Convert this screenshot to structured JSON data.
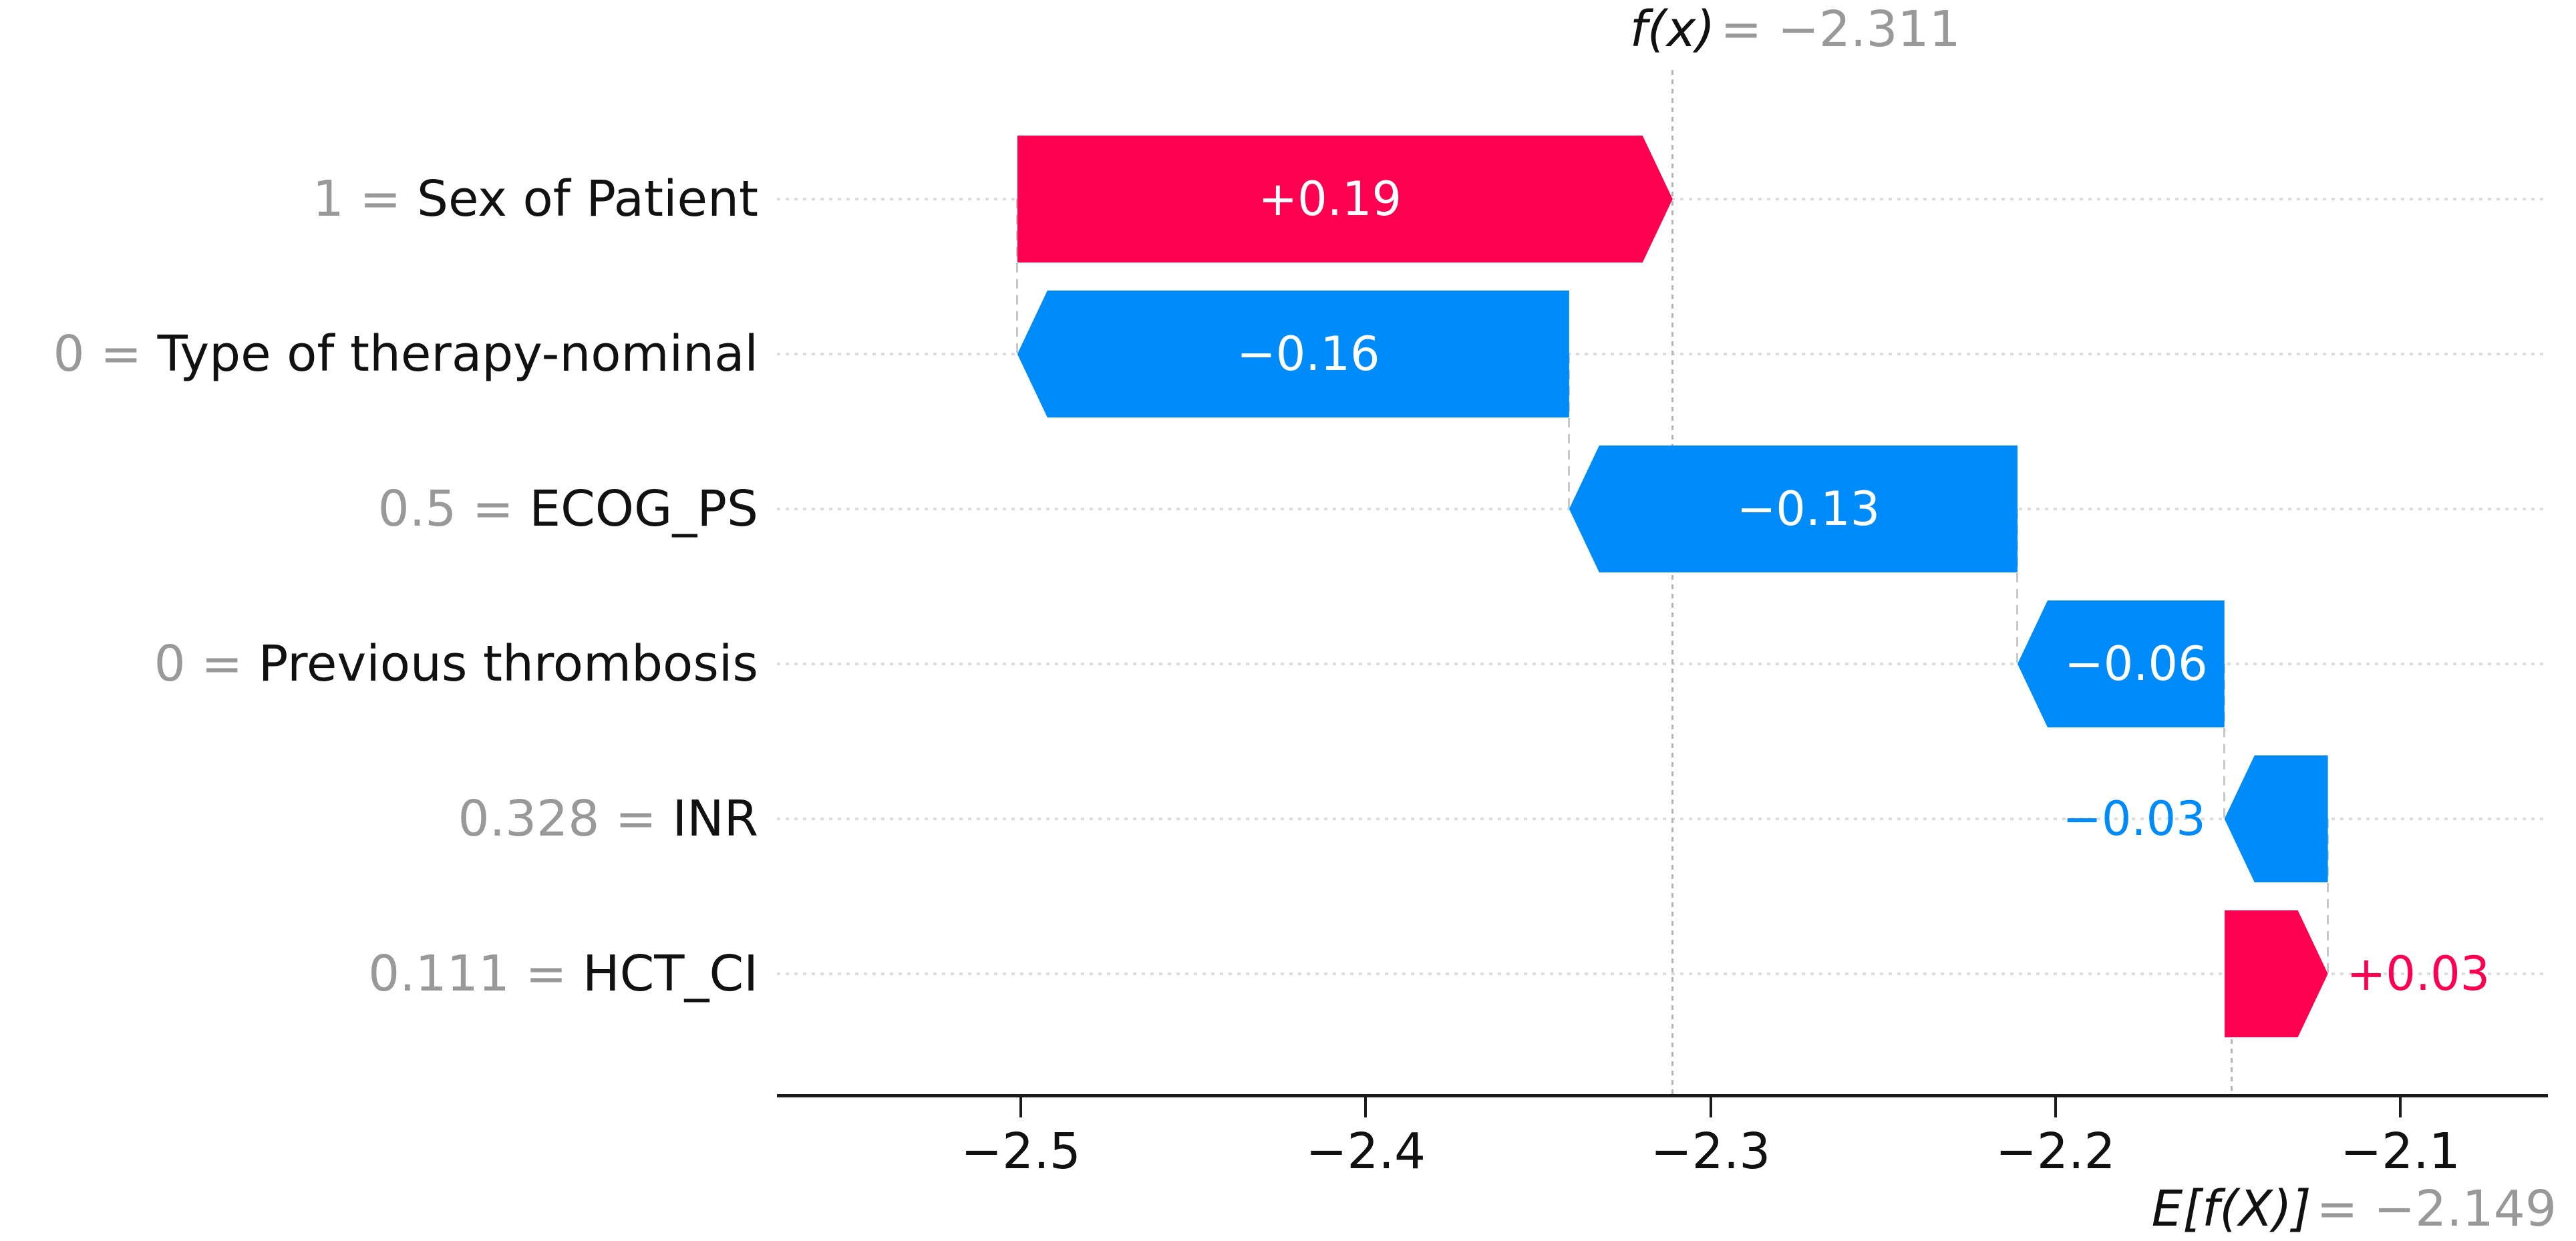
{
  "chart_data": {
    "type": "bar",
    "subtype": "shap-waterfall",
    "title": "",
    "xlabel": "",
    "ylabel": "",
    "fx_value": -2.311,
    "base_value": -2.149,
    "xlim": [
      -2.5707,
      -2.0572
    ],
    "x_ticks": [
      -2.5,
      -2.4,
      -2.3,
      -2.2,
      -2.1
    ],
    "x_tick_labels": [
      "−2.5",
      "−2.4",
      "−2.3",
      "−2.2",
      "−2.1"
    ],
    "grid": "dotted-row-guides",
    "legend": "none",
    "features": [
      {
        "feature_value": "1",
        "feature_name": "Sex of Patient",
        "shap": 0.19,
        "bar_label": "+0.19"
      },
      {
        "feature_value": "0",
        "feature_name": "Type of therapy-nominal",
        "shap": -0.16,
        "bar_label": "−0.16"
      },
      {
        "feature_value": "0.5",
        "feature_name": "ECOG_PS",
        "shap": -0.13,
        "bar_label": "−0.13"
      },
      {
        "feature_value": "0",
        "feature_name": "Previous thrombosis",
        "shap": -0.06,
        "bar_label": "−0.06"
      },
      {
        "feature_value": "0.328",
        "feature_name": "INR",
        "shap": -0.03,
        "bar_label": "−0.03"
      },
      {
        "feature_value": "0.111",
        "feature_name": "HCT_CI",
        "shap": 0.03,
        "bar_label": "+0.03"
      }
    ],
    "annotations": {
      "fx_symbol": "f(x)",
      "fx_rest": "= −2.311",
      "ef_symbol": "E[f(X)]",
      "ef_rest": "= −2.149"
    },
    "colors": {
      "positive": "#ff0051",
      "negative": "#008bfb",
      "value_gray": "#999999",
      "name_black": "#111111",
      "axis": "#1b1b1b",
      "row_guide": "#dcdcdc",
      "connector": "#c8c8c8",
      "refline": "#b5b5b5",
      "background": "#ffffff"
    }
  }
}
